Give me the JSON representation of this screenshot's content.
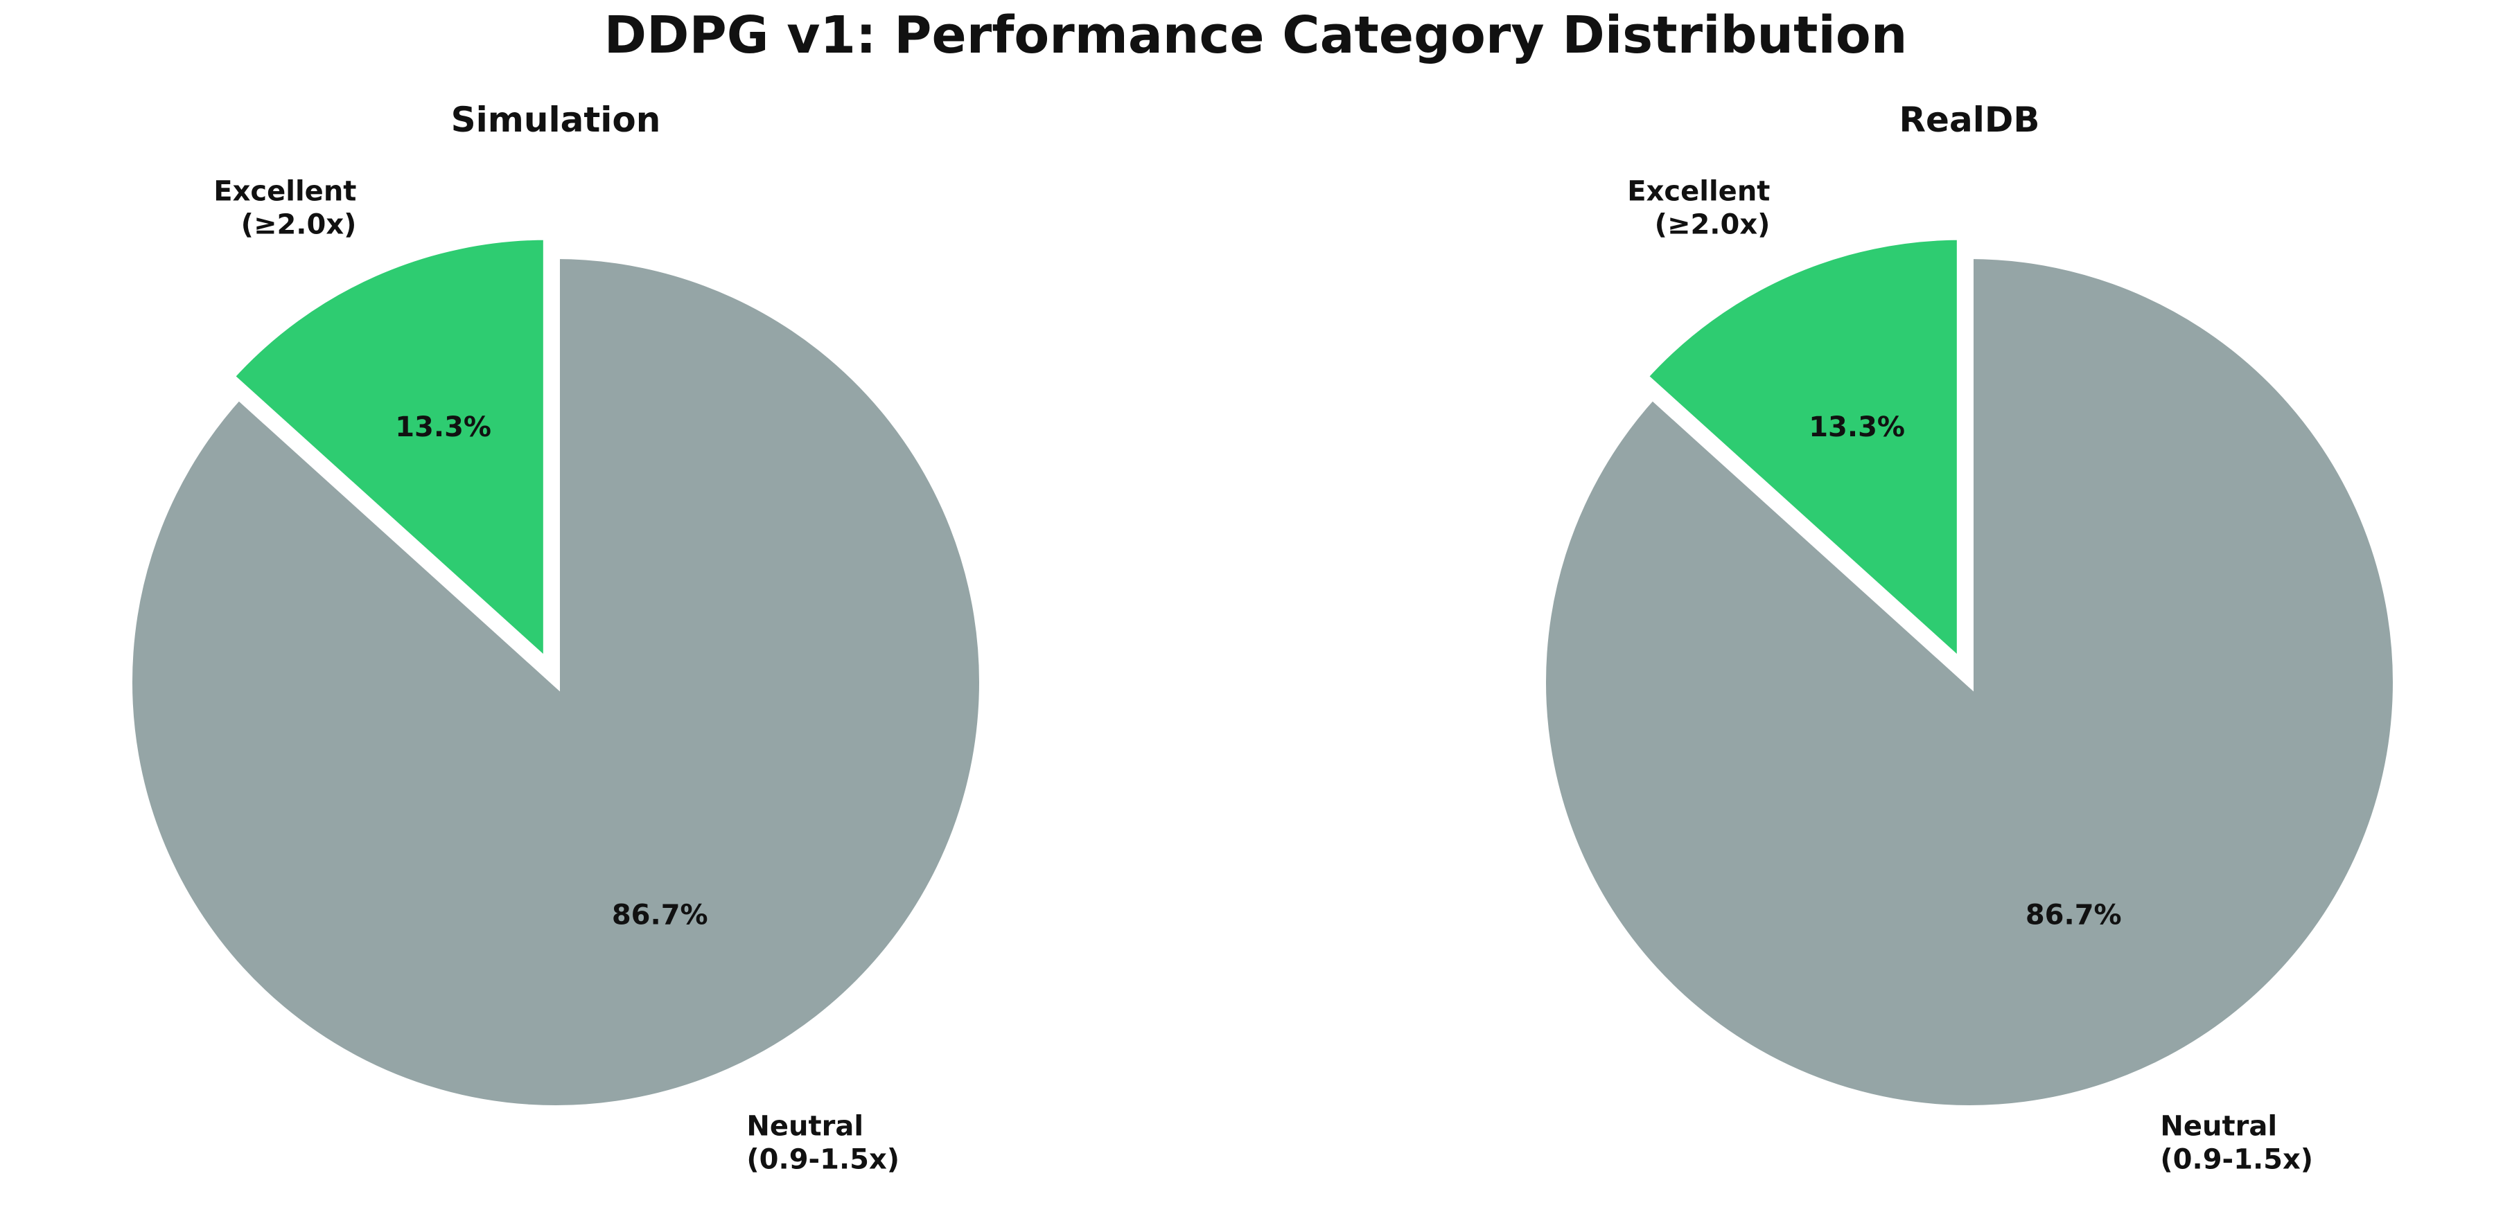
{
  "figure_title": "DDPG v1: Performance Category Distribution",
  "chart_data": [
    {
      "type": "pie",
      "title": "Simulation",
      "slices": [
        {
          "label_lines": [
            "Excellent",
            "(≥2.0x)"
          ],
          "value": 13.3,
          "pct_label": "13.3%",
          "color": "#2ecc71",
          "exploded": true
        },
        {
          "label_lines": [
            "Neutral",
            "(0.9-1.5x)"
          ],
          "value": 86.7,
          "pct_label": "86.7%",
          "color": "#95a5a6",
          "exploded": false
        }
      ],
      "start_angle_deg": 90,
      "direction": "counterclockwise",
      "edge_color": "#ffffff"
    },
    {
      "type": "pie",
      "title": "RealDB",
      "slices": [
        {
          "label_lines": [
            "Excellent",
            "(≥2.0x)"
          ],
          "value": 13.3,
          "pct_label": "13.3%",
          "color": "#2ecc71",
          "exploded": true
        },
        {
          "label_lines": [
            "Neutral",
            "(0.9-1.5x)"
          ],
          "value": 86.7,
          "pct_label": "86.7%",
          "color": "#95a5a6",
          "exploded": false
        }
      ],
      "start_angle_deg": 90,
      "direction": "counterclockwise",
      "edge_color": "#ffffff"
    }
  ]
}
